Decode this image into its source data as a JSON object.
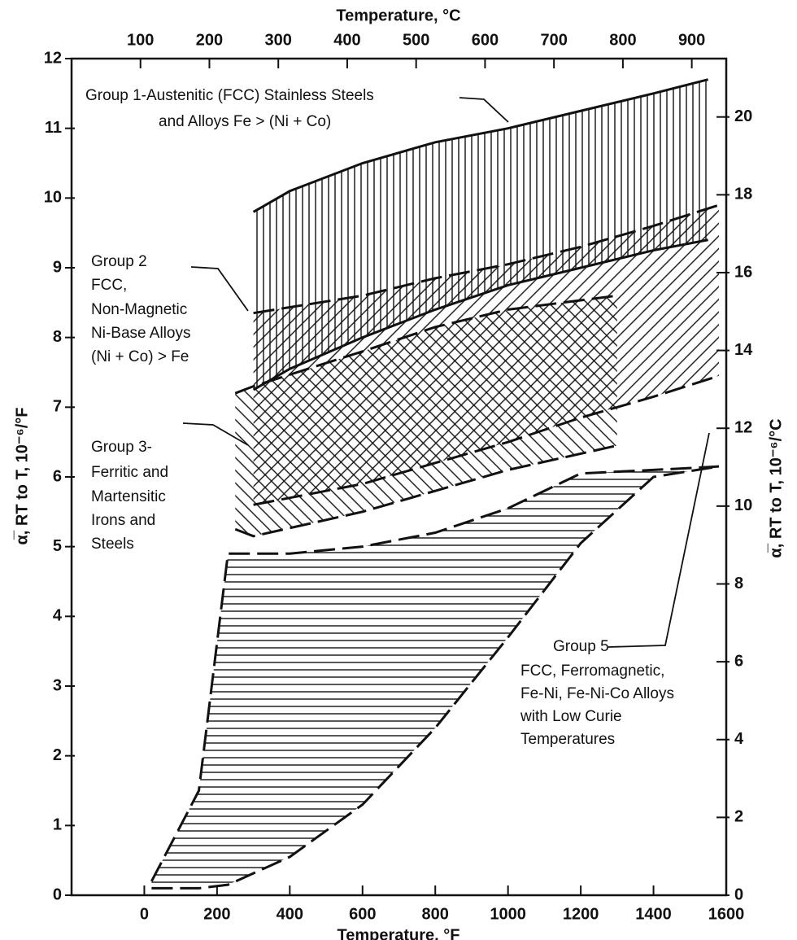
{
  "chart_data": {
    "type": "band",
    "xlabel": "Temperature, °F",
    "x2label": "Temperature, °C",
    "ylabel": "α̅, RT to T, 10⁻⁶/°F",
    "y2label": "α̅, RT to T, 10⁻⁶/°C",
    "xlim": [
      -200,
      1600
    ],
    "xticks": [
      0,
      200,
      400,
      600,
      800,
      1000,
      1200,
      1400,
      1600
    ],
    "x2lim": [
      0,
      950
    ],
    "x2ticks": [
      100,
      200,
      300,
      400,
      500,
      600,
      700,
      800,
      900
    ],
    "ylim": [
      0,
      12
    ],
    "yticks": [
      0,
      1,
      2,
      3,
      4,
      5,
      6,
      7,
      8,
      9,
      10,
      11,
      12
    ],
    "y2lim": [
      0,
      21.5
    ],
    "y2ticks": [
      0,
      2,
      4,
      6,
      8,
      10,
      12,
      14,
      16,
      18,
      20
    ],
    "series": [
      {
        "label": [
          "Group 1-Austenitic (FCC) Stainless Steels",
          "and Alloys Fe > (Ni + Co)"
        ],
        "hatch": "vertical",
        "color": "#111",
        "upper_style": "solid",
        "lower_style": "solid",
        "x": [
          300,
          400,
          600,
          800,
          1000,
          1200,
          1400,
          1550
        ],
        "upper": [
          9.8,
          10.1,
          10.5,
          10.8,
          11.0,
          11.25,
          11.5,
          11.7
        ],
        "lower": [
          7.25,
          7.55,
          8.0,
          8.4,
          8.75,
          9.0,
          9.25,
          9.4
        ]
      },
      {
        "label": [
          "Group 2",
          "FCC,",
          "Non-Magnetic",
          "Ni-Base Alloys",
          "(Ni + Co) > Fe"
        ],
        "hatch": "diag-down",
        "color": "#111",
        "upper_style": "dashed",
        "lower_style": "dashed",
        "x": [
          300,
          600,
          800,
          1000,
          1200,
          1400,
          1580
        ],
        "upper": [
          8.35,
          8.6,
          8.85,
          9.05,
          9.3,
          9.6,
          9.9
        ],
        "lower": [
          5.6,
          5.9,
          6.2,
          6.5,
          6.85,
          7.15,
          7.45
        ]
      },
      {
        "label": [
          "Group 3-",
          "Ferritic and",
          "Martensitic",
          "Irons and",
          "Steels"
        ],
        "hatch": "diag-up",
        "color": "#111",
        "upper_style": "dashed",
        "lower_style": "dashed",
        "x": [
          250,
          300,
          600,
          800,
          1000,
          1300
        ],
        "upper": [
          7.2,
          7.3,
          7.8,
          8.15,
          8.4,
          8.6
        ],
        "lower": [
          5.25,
          5.15,
          5.5,
          5.8,
          6.1,
          6.45
        ]
      },
      {
        "label": [
          "Group 5",
          "FCC, Ferromagnetic,",
          "Fe-Ni, Fe-Ni-Co Alloys",
          "with Low Curie",
          "Temperatures"
        ],
        "hatch": "horizontal",
        "color": "#111",
        "upper_style": "dashed",
        "lower_style": "dashed",
        "x": [
          20,
          150,
          230,
          400,
          600,
          800,
          1000,
          1200,
          1400,
          1580
        ],
        "upper": [
          0.2,
          1.5,
          4.9,
          4.9,
          5.0,
          5.2,
          5.55,
          6.05,
          6.1,
          6.15
        ],
        "lower": [
          0.1,
          0.1,
          0.15,
          0.55,
          1.3,
          2.4,
          3.7,
          5.05,
          6.0,
          6.15
        ]
      }
    ]
  }
}
